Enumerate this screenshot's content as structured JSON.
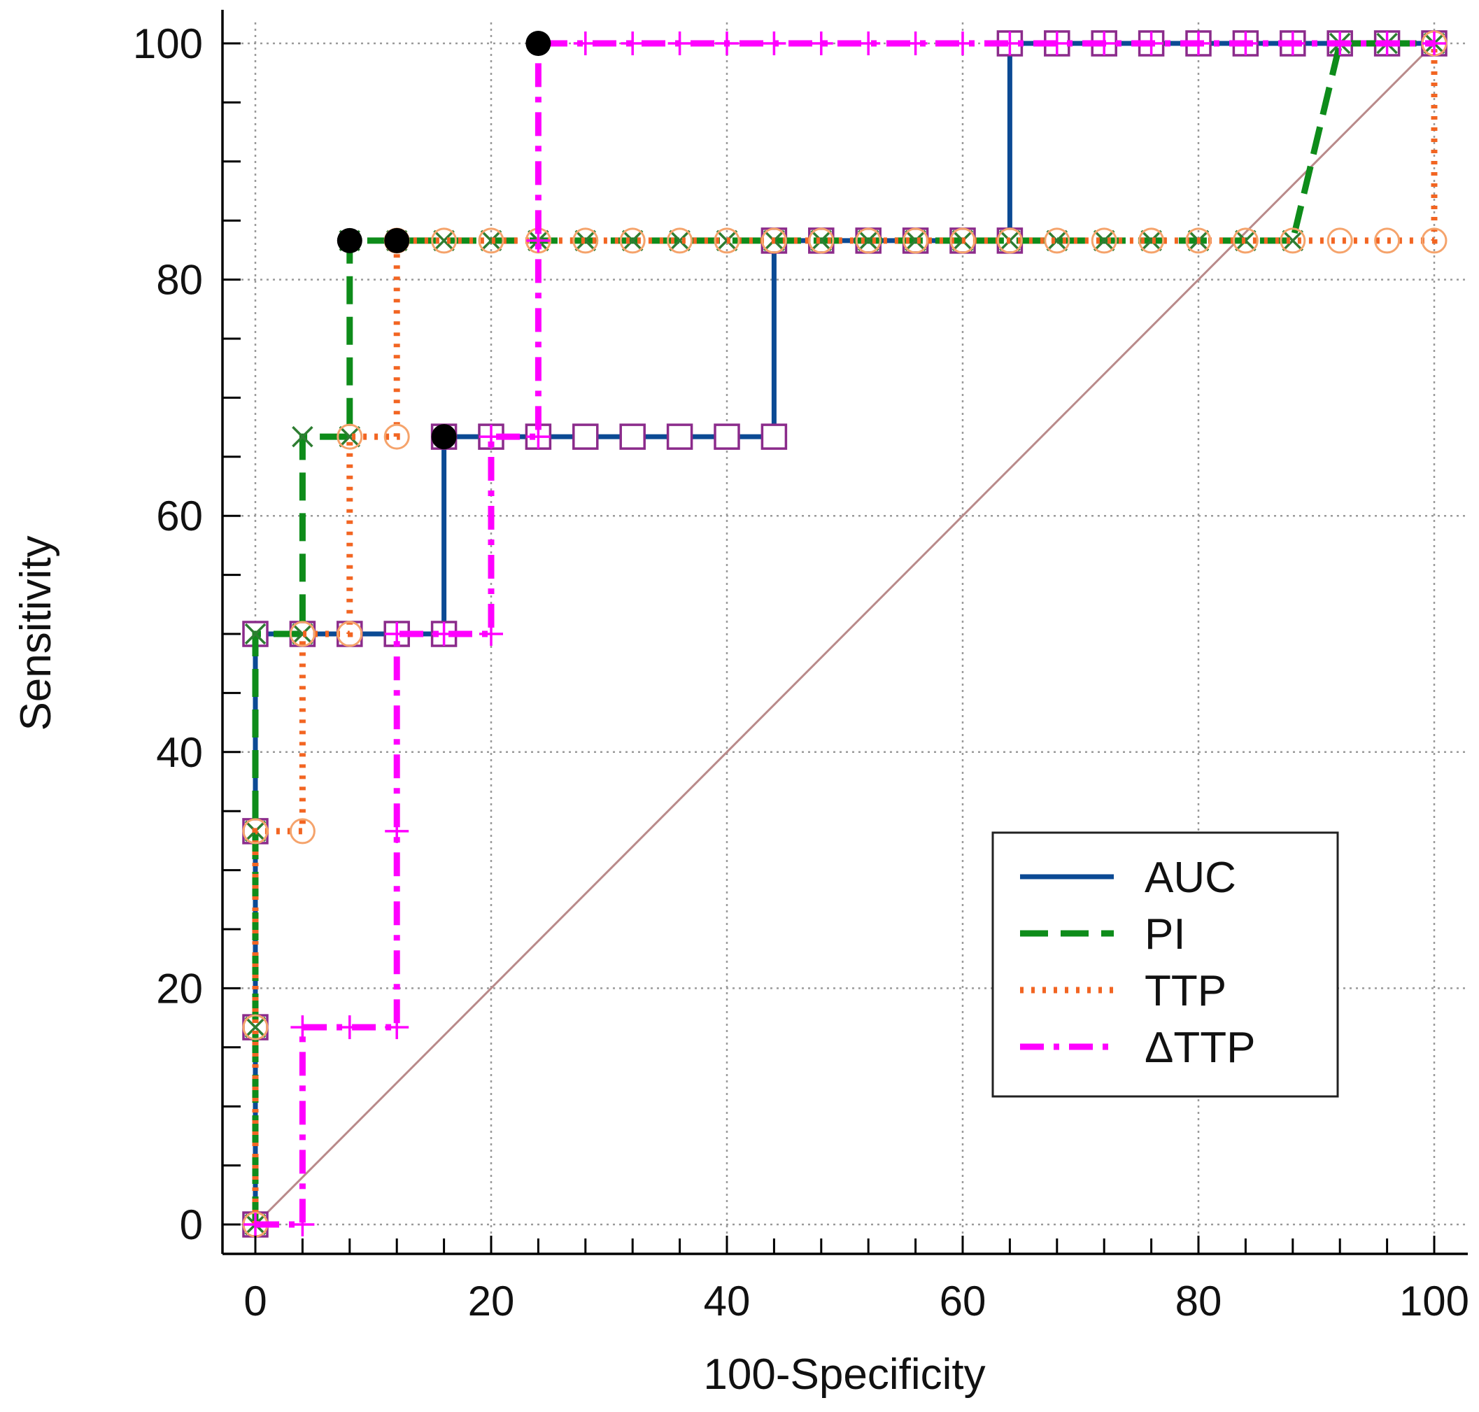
{
  "chart_data": {
    "type": "line",
    "title": "",
    "xlabel": "100-Specificity",
    "ylabel": "Sensitivity",
    "xlim": [
      0,
      100
    ],
    "ylim": [
      0,
      100
    ],
    "x_ticks": [
      "0",
      "20",
      "40",
      "60",
      "80",
      "100"
    ],
    "y_ticks": [
      "0",
      "20",
      "40",
      "60",
      "80",
      "100"
    ],
    "grid": true,
    "legend_position": "bottom-right",
    "reference_line": {
      "from": [
        0,
        0
      ],
      "to": [
        100,
        100
      ],
      "color": "#b98a8a"
    },
    "series": [
      {
        "name": "AUC",
        "color": "#0b4a94",
        "style": "solid",
        "marker": "square",
        "points": [
          [
            0,
            0
          ],
          [
            0,
            16.7
          ],
          [
            0,
            33.3
          ],
          [
            0,
            50
          ],
          [
            4,
            50
          ],
          [
            8,
            50
          ],
          [
            12,
            50
          ],
          [
            16,
            50
          ],
          [
            16,
            66.7
          ],
          [
            20,
            66.7
          ],
          [
            24,
            66.7
          ],
          [
            28,
            66.7
          ],
          [
            32,
            66.7
          ],
          [
            36,
            66.7
          ],
          [
            40,
            66.7
          ],
          [
            44,
            66.7
          ],
          [
            44,
            83.3
          ],
          [
            48,
            83.3
          ],
          [
            52,
            83.3
          ],
          [
            56,
            83.3
          ],
          [
            60,
            83.3
          ],
          [
            64,
            83.3
          ],
          [
            64,
            100
          ],
          [
            68,
            100
          ],
          [
            72,
            100
          ],
          [
            76,
            100
          ],
          [
            80,
            100
          ],
          [
            84,
            100
          ],
          [
            88,
            100
          ],
          [
            92,
            100
          ],
          [
            96,
            100
          ],
          [
            100,
            100
          ]
        ],
        "criterion_points": [
          [
            16,
            66.7
          ]
        ]
      },
      {
        "name": "PI",
        "color": "#0e8c1a",
        "style": "dashed",
        "marker": "x",
        "points": [
          [
            0,
            0
          ],
          [
            0,
            16.7
          ],
          [
            0,
            33.3
          ],
          [
            0,
            50
          ],
          [
            4,
            50
          ],
          [
            4,
            66.7
          ],
          [
            8,
            66.7
          ],
          [
            8,
            83.3
          ],
          [
            12,
            83.3
          ],
          [
            16,
            83.3
          ],
          [
            20,
            83.3
          ],
          [
            24,
            83.3
          ],
          [
            28,
            83.3
          ],
          [
            32,
            83.3
          ],
          [
            36,
            83.3
          ],
          [
            40,
            83.3
          ],
          [
            44,
            83.3
          ],
          [
            48,
            83.3
          ],
          [
            52,
            83.3
          ],
          [
            56,
            83.3
          ],
          [
            60,
            83.3
          ],
          [
            64,
            83.3
          ],
          [
            68,
            83.3
          ],
          [
            72,
            83.3
          ],
          [
            76,
            83.3
          ],
          [
            80,
            83.3
          ],
          [
            84,
            83.3
          ],
          [
            88,
            83.3
          ],
          [
            92,
            100
          ],
          [
            96,
            100
          ],
          [
            100,
            100
          ]
        ],
        "criterion_points": [
          [
            8,
            83.3
          ]
        ]
      },
      {
        "name": "TTP",
        "color": "#f26522",
        "style": "dotted",
        "marker": "circle",
        "points": [
          [
            0,
            0
          ],
          [
            0,
            16.7
          ],
          [
            0,
            33.3
          ],
          [
            4,
            33.3
          ],
          [
            4,
            50
          ],
          [
            8,
            50
          ],
          [
            8,
            66.7
          ],
          [
            12,
            66.7
          ],
          [
            12,
            83.3
          ],
          [
            16,
            83.3
          ],
          [
            20,
            83.3
          ],
          [
            24,
            83.3
          ],
          [
            28,
            83.3
          ],
          [
            32,
            83.3
          ],
          [
            36,
            83.3
          ],
          [
            40,
            83.3
          ],
          [
            44,
            83.3
          ],
          [
            48,
            83.3
          ],
          [
            52,
            83.3
          ],
          [
            56,
            83.3
          ],
          [
            60,
            83.3
          ],
          [
            64,
            83.3
          ],
          [
            68,
            83.3
          ],
          [
            72,
            83.3
          ],
          [
            76,
            83.3
          ],
          [
            80,
            83.3
          ],
          [
            84,
            83.3
          ],
          [
            88,
            83.3
          ],
          [
            92,
            83.3
          ],
          [
            96,
            83.3
          ],
          [
            100,
            83.3
          ],
          [
            100,
            100
          ]
        ],
        "criterion_points": [
          [
            12,
            83.3
          ]
        ]
      },
      {
        "name": "ΔTTP",
        "color": "#ff00ff",
        "style": "dashdot",
        "marker": "plus",
        "points": [
          [
            0,
            0
          ],
          [
            4,
            0
          ],
          [
            4,
            16.7
          ],
          [
            8,
            16.7
          ],
          [
            12,
            16.7
          ],
          [
            12,
            33.3
          ],
          [
            12,
            50
          ],
          [
            16,
            50
          ],
          [
            20,
            50
          ],
          [
            20,
            66.7
          ],
          [
            24,
            66.7
          ],
          [
            24,
            83.3
          ],
          [
            24,
            100
          ],
          [
            28,
            100
          ],
          [
            32,
            100
          ],
          [
            36,
            100
          ],
          [
            40,
            100
          ],
          [
            44,
            100
          ],
          [
            48,
            100
          ],
          [
            52,
            100
          ],
          [
            56,
            100
          ],
          [
            60,
            100
          ],
          [
            64,
            100
          ],
          [
            68,
            100
          ],
          [
            72,
            100
          ],
          [
            76,
            100
          ],
          [
            80,
            100
          ],
          [
            84,
            100
          ],
          [
            88,
            100
          ],
          [
            92,
            100
          ],
          [
            96,
            100
          ],
          [
            100,
            100
          ]
        ],
        "criterion_points": [
          [
            24,
            100
          ]
        ]
      }
    ]
  }
}
